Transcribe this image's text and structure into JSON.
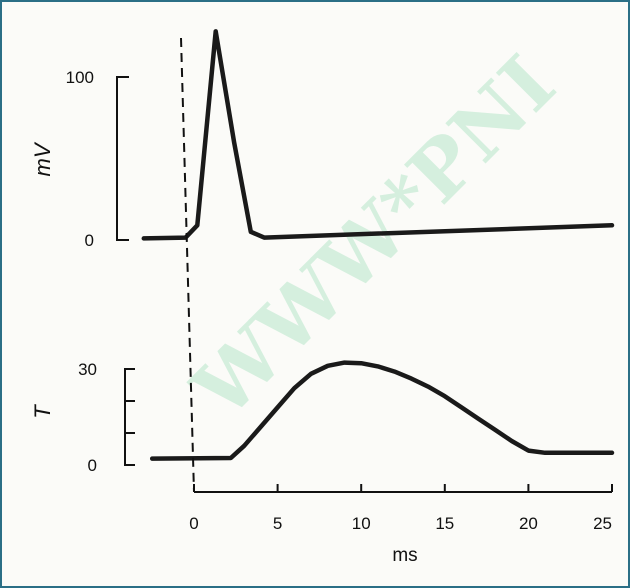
{
  "watermark": "WWW*PNI",
  "chart_data": [
    {
      "type": "line",
      "ylabel": "mV",
      "xlim": [
        -3,
        25
      ],
      "ylim": [
        0,
        100
      ],
      "yticks": [
        {
          "value": 0,
          "label": "0"
        },
        {
          "value": 100,
          "label": "100"
        }
      ],
      "series": [
        {
          "points": [
            [
              -3,
              1
            ],
            [
              -0.5,
              1.5
            ],
            [
              0.2,
              9
            ],
            [
              1.3,
              128
            ],
            [
              2.4,
              60
            ],
            [
              3.4,
              5
            ],
            [
              4.2,
              1.5
            ],
            [
              25,
              9
            ]
          ]
        }
      ]
    },
    {
      "type": "line",
      "ylabel": "T",
      "xlabel": "ms",
      "xlim": [
        -3,
        25
      ],
      "ylim": [
        0,
        30
      ],
      "yticks": [
        {
          "value": 0,
          "label": "0"
        },
        {
          "value": 10,
          "label": ""
        },
        {
          "value": 20,
          "label": ""
        },
        {
          "value": 30,
          "label": "30"
        }
      ],
      "xticks": [
        0,
        5,
        10,
        15,
        20,
        25
      ],
      "xticklabels": [
        "0",
        "5",
        "10",
        "15",
        "20",
        "25"
      ],
      "series": [
        {
          "points": [
            [
              -2.5,
              2
            ],
            [
              2.2,
              2.2
            ],
            [
              3,
              6
            ],
            [
              4,
              12
            ],
            [
              5,
              18
            ],
            [
              6,
              24
            ],
            [
              7,
              28.5
            ],
            [
              8,
              31
            ],
            [
              9,
              32
            ],
            [
              10,
              31.8
            ],
            [
              11,
              30.8
            ],
            [
              12,
              29.2
            ],
            [
              13,
              27
            ],
            [
              14,
              24.5
            ],
            [
              15,
              21.5
            ],
            [
              16,
              18
            ],
            [
              17,
              14.5
            ],
            [
              18,
              11
            ],
            [
              19,
              7.5
            ],
            [
              20,
              4.5
            ],
            [
              21,
              3.8
            ],
            [
              25,
              3.8
            ]
          ]
        }
      ]
    }
  ]
}
